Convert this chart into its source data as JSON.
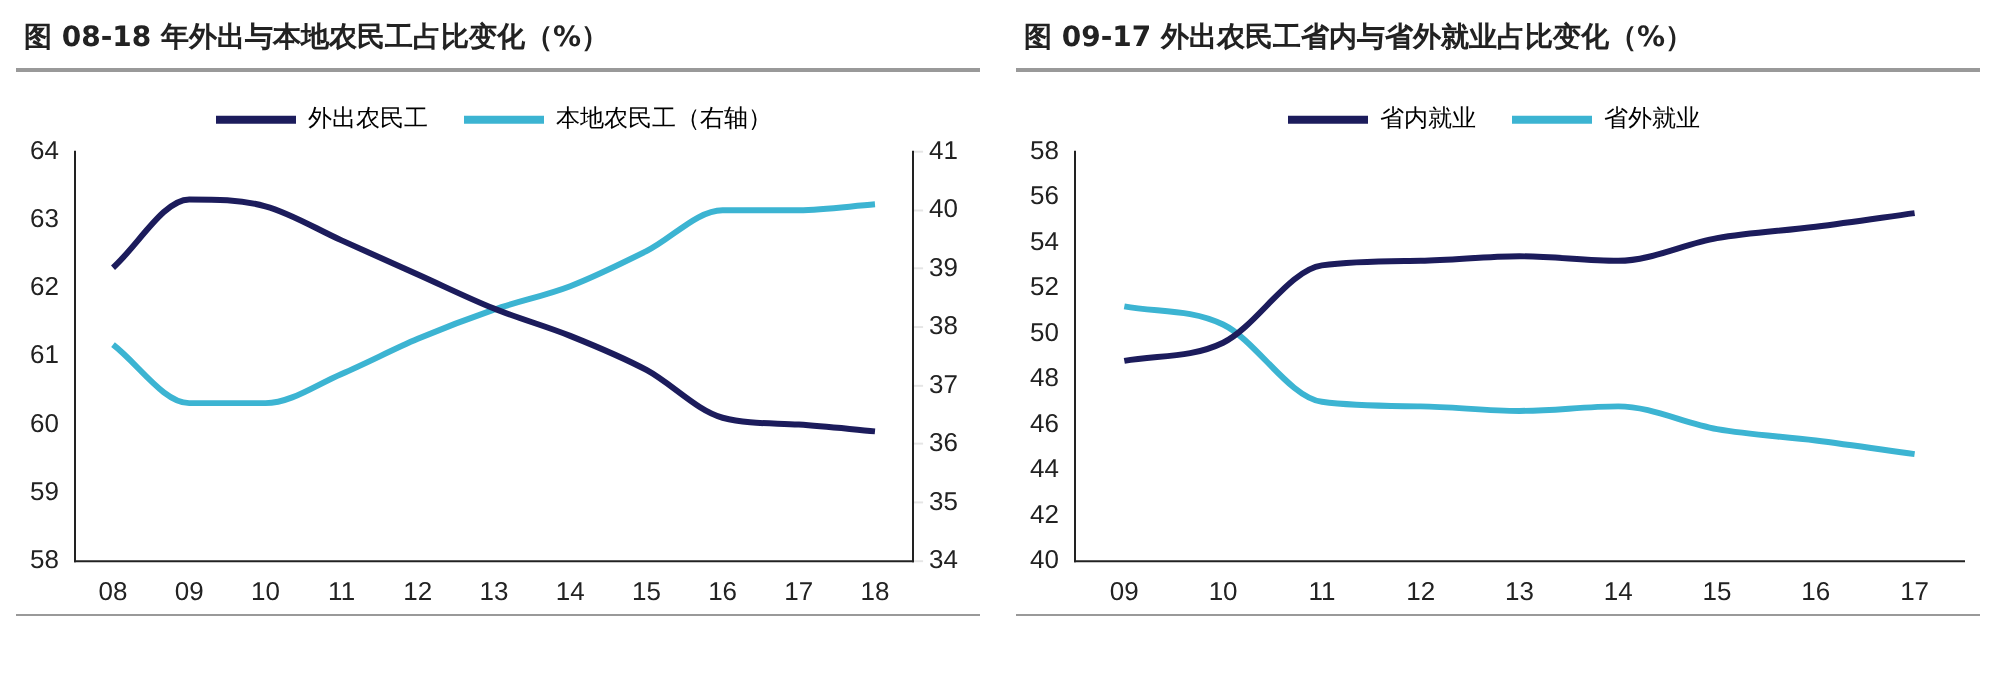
{
  "chart_data": [
    {
      "type": "line",
      "title": "图    08-18 年外出与本地农民工占比变化（%）",
      "categories": [
        "08",
        "09",
        "10",
        "11",
        "12",
        "13",
        "14",
        "15",
        "16",
        "17",
        "18"
      ],
      "series": [
        {
          "name": "外出农民工",
          "color": "#1c1c5c",
          "values": [
            62.3,
            63.3,
            63.2,
            62.7,
            62.2,
            61.7,
            61.3,
            60.8,
            60.1,
            60.0,
            59.9
          ]
        },
        {
          "name": "本地农民工（右轴）",
          "color": "#3cb4d2",
          "axis": "y2",
          "values": [
            37.7,
            36.7,
            36.7,
            37.2,
            37.8,
            38.3,
            38.7,
            39.3,
            40.0,
            40.0,
            40.1
          ]
        }
      ],
      "ylim": [
        58,
        64
      ],
      "yticks": [
        58,
        59,
        60,
        61,
        62,
        63,
        64
      ],
      "y2lim": [
        34,
        41
      ],
      "y2ticks": [
        34,
        35,
        36,
        37,
        38,
        39,
        40,
        41
      ],
      "legend": "top",
      "grid": false
    },
    {
      "type": "line",
      "title": "图    09-17 外出农民工省内与省外就业占比变化（%）",
      "categories": [
        "09",
        "10",
        "11",
        "12",
        "13",
        "14",
        "15",
        "16",
        "17"
      ],
      "series": [
        {
          "name": "省内就业",
          "color": "#1c1c5c",
          "values": [
            48.8,
            49.6,
            53.0,
            53.2,
            53.4,
            53.2,
            54.2,
            54.7,
            55.3
          ]
        },
        {
          "name": "省外就业",
          "color": "#3cb4d2",
          "values": [
            51.2,
            50.4,
            47.0,
            46.8,
            46.6,
            46.8,
            45.8,
            45.3,
            44.7
          ]
        }
      ],
      "ylim": [
        40,
        58
      ],
      "yticks": [
        40,
        42,
        44,
        46,
        48,
        50,
        52,
        54,
        56,
        58
      ],
      "legend": "top",
      "grid": false
    }
  ]
}
